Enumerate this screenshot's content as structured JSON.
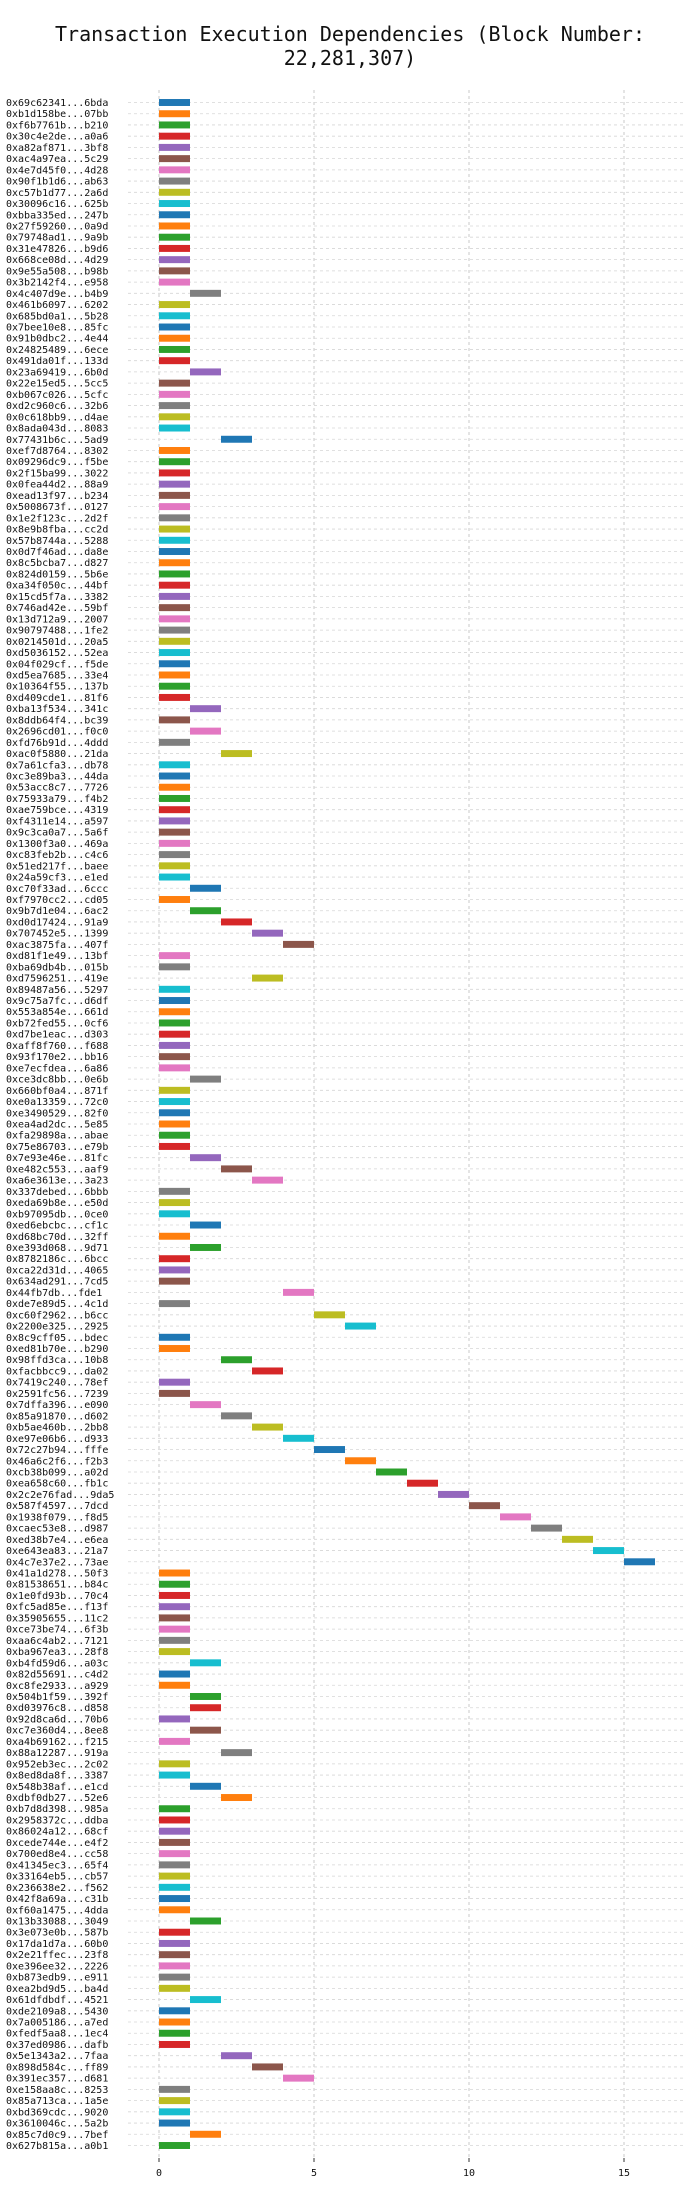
{
  "chart_data": {
    "type": "bar",
    "orientation": "horizontal-gantt",
    "title": "Transaction Execution Dependencies (Block Number: 22,281,307)",
    "xlim": [
      -1,
      17
    ],
    "xticks": [
      0,
      5,
      10,
      15
    ],
    "grid": true,
    "palette": [
      "#1f77b4",
      "#ff7f0e",
      "#2ca02c",
      "#d62728",
      "#9467bd",
      "#8c564b",
      "#e377c2",
      "#7f7f7f",
      "#bcbd22",
      "#17becf"
    ],
    "rows": [
      [
        "0x69c62341...6bda",
        0
      ],
      [
        "0xb1d158be...07bb",
        0
      ],
      [
        "0xf6b7761b...b210",
        0
      ],
      [
        "0x30c4e2de...a0a6",
        0
      ],
      [
        "0xa82af871...3bf8",
        0
      ],
      [
        "0xac4a97ea...5c29",
        0
      ],
      [
        "0x4e7d45f0...4d28",
        0
      ],
      [
        "0x90f1b1d6...ab63",
        0
      ],
      [
        "0xc57b1d77...2a6d",
        0
      ],
      [
        "0x30096c16...625b",
        0
      ],
      [
        "0xbba335ed...247b",
        0
      ],
      [
        "0x27f59260...0a9d",
        0
      ],
      [
        "0x79748ad1...9a9b",
        0
      ],
      [
        "0x31e47826...b9d6",
        0
      ],
      [
        "0x668ce08d...4d29",
        0
      ],
      [
        "0x9e55a508...b98b",
        0
      ],
      [
        "0x3b2142f4...e958",
        0
      ],
      [
        "0x4c407d9e...b4b9",
        1
      ],
      [
        "0x461b6097...6202",
        0
      ],
      [
        "0x685bd0a1...5b28",
        0
      ],
      [
        "0x7bee10e8...85fc",
        0
      ],
      [
        "0x91b0dbc2...4e44",
        0
      ],
      [
        "0x24825489...6ece",
        0
      ],
      [
        "0x491da01f...133d",
        0
      ],
      [
        "0x23a69419...6b0d",
        1
      ],
      [
        "0x22e15ed5...5cc5",
        0
      ],
      [
        "0xb067c026...5cfc",
        0
      ],
      [
        "0xd2c960c6...32b6",
        0
      ],
      [
        "0x0c618bb9...d4ae",
        0
      ],
      [
        "0x8ada043d...8083",
        0
      ],
      [
        "0x77431b6c...5ad9",
        2
      ],
      [
        "0xef7d8764...8302",
        0
      ],
      [
        "0x09296dc9...f5be",
        0
      ],
      [
        "0x2f15ba99...3022",
        0
      ],
      [
        "0x0fea44d2...88a9",
        0
      ],
      [
        "0xead13f97...b234",
        0
      ],
      [
        "0x5008673f...0127",
        0
      ],
      [
        "0x1e2f123c...2d2f",
        0
      ],
      [
        "0x8e9b8fba...cc2d",
        0
      ],
      [
        "0x57b8744a...5288",
        0
      ],
      [
        "0x0d7f46ad...da8e",
        0
      ],
      [
        "0x8c5bcba7...d827",
        0
      ],
      [
        "0x824d0159...5b6e",
        0
      ],
      [
        "0xa34f050c...44bf",
        0
      ],
      [
        "0x15cd5f7a...3382",
        0
      ],
      [
        "0x746ad42e...59bf",
        0
      ],
      [
        "0x13d712a9...2007",
        0
      ],
      [
        "0x90797488...1fe2",
        0
      ],
      [
        "0x0214501d...20a5",
        0
      ],
      [
        "0xd5036152...52ea",
        0
      ],
      [
        "0x04f029cf...f5de",
        0
      ],
      [
        "0xd5ea7685...33e4",
        0
      ],
      [
        "0x10364f55...137b",
        0
      ],
      [
        "0xd409cde1...81f6",
        0
      ],
      [
        "0xba13f534...341c",
        1
      ],
      [
        "0x8ddb64f4...bc39",
        0
      ],
      [
        "0x2696cd01...f0c0",
        1
      ],
      [
        "0xfd76b91d...4ddd",
        0
      ],
      [
        "0xac0f5880...21da",
        2
      ],
      [
        "0x7a61cfa3...db78",
        0
      ],
      [
        "0xc3e89ba3...44da",
        0
      ],
      [
        "0x53acc8c7...7726",
        0
      ],
      [
        "0x75933a79...f4b2",
        0
      ],
      [
        "0xae759bce...4319",
        0
      ],
      [
        "0xf4311e14...a597",
        0
      ],
      [
        "0x9c3ca0a7...5a6f",
        0
      ],
      [
        "0x1300f3a0...469a",
        0
      ],
      [
        "0xc83feb2b...c4c6",
        0
      ],
      [
        "0x51ed217f...baee",
        0
      ],
      [
        "0x24a59cf3...e1ed",
        0
      ],
      [
        "0xc70f33ad...6ccc",
        1
      ],
      [
        "0xf7970cc2...cd05",
        0
      ],
      [
        "0x9b7d1e04...6ac2",
        1
      ],
      [
        "0xd0d17424...91a9",
        2
      ],
      [
        "0x707452e5...1399",
        3
      ],
      [
        "0xac3875fa...407f",
        4
      ],
      [
        "0xd81f1e49...13bf",
        0
      ],
      [
        "0xba69db4b...015b",
        0
      ],
      [
        "0xd7596251...419e",
        3
      ],
      [
        "0x89487a56...5297",
        0
      ],
      [
        "0x9c75a7fc...d6df",
        0
      ],
      [
        "0x553a854e...661d",
        0
      ],
      [
        "0xb72fed55...0cf6",
        0
      ],
      [
        "0xd7be1eac...d303",
        0
      ],
      [
        "0xaff8f760...f688",
        0
      ],
      [
        "0x93f170e2...bb16",
        0
      ],
      [
        "0xe7ecfdea...6a86",
        0
      ],
      [
        "0xce3dc8bb...0e6b",
        1
      ],
      [
        "0x660bf0a4...871f",
        0
      ],
      [
        "0xe0a13359...72c0",
        0
      ],
      [
        "0xe3490529...82f0",
        0
      ],
      [
        "0xea4ad2dc...5e85",
        0
      ],
      [
        "0xfa29898a...abae",
        0
      ],
      [
        "0x75e86703...e79b",
        0
      ],
      [
        "0x7e93e46e...81fc",
        1
      ],
      [
        "0xe482c553...aaf9",
        2
      ],
      [
        "0xa6e3613e...3a23",
        3
      ],
      [
        "0x337debed...6bbb",
        0
      ],
      [
        "0xeda69b8e...e50d",
        0
      ],
      [
        "0xb97095db...0ce0",
        0
      ],
      [
        "0xed6ebcbc...cf1c",
        1
      ],
      [
        "0xd68bc70d...32ff",
        0
      ],
      [
        "0xe393d068...9d71",
        1
      ],
      [
        "0x8782186c...6bcc",
        0
      ],
      [
        "0xca22d31d...4065",
        0
      ],
      [
        "0x634ad291...7cd5",
        0
      ],
      [
        "0x44fb7db...fde1",
        4
      ],
      [
        "0xde7e89d5...4c1d",
        0
      ],
      [
        "0xc60f2962...b6cc",
        5
      ],
      [
        "0x2200e325...2925",
        6
      ],
      [
        "0x8c9cff05...bdec",
        0
      ],
      [
        "0xed81b70e...b290",
        0
      ],
      [
        "0x98ffd3ca...10b8",
        2
      ],
      [
        "0xfacbbcc9...da02",
        3
      ],
      [
        "0x7419c240...78ef",
        0
      ],
      [
        "0x2591fc56...7239",
        0
      ],
      [
        "0x7dffa396...e090",
        1
      ],
      [
        "0x85a91870...d602",
        2
      ],
      [
        "0xb5ae460b...2bb8",
        3
      ],
      [
        "0xe97e06b6...d933",
        4
      ],
      [
        "0x72c27b94...fffe",
        5
      ],
      [
        "0x46a6c2f6...f2b3",
        6
      ],
      [
        "0xcb38b099...a02d",
        7
      ],
      [
        "0xea658c60...fb1c",
        8
      ],
      [
        "0x2c2e76fad...9da5",
        9
      ],
      [
        "0x587f4597...7dcd",
        10
      ],
      [
        "0x1938f079...f8d5",
        11
      ],
      [
        "0xcaec53e8...d987",
        12
      ],
      [
        "0xed38b7e4...e6ea",
        13
      ],
      [
        "0xe643ea83...21a7",
        14
      ],
      [
        "0x4c7e37e2...73ae",
        15
      ],
      [
        "0x41a1d278...50f3",
        0
      ],
      [
        "0x81538651...b84c",
        0
      ],
      [
        "0x1e0fd93b...70c4",
        0
      ],
      [
        "0xfc5ad85e...f13f",
        0
      ],
      [
        "0x35905655...11c2",
        0
      ],
      [
        "0xce73be74...6f3b",
        0
      ],
      [
        "0xaa6c4ab2...7121",
        0
      ],
      [
        "0xba967ea3...28f8",
        0
      ],
      [
        "0xb4fd59d6...a03c",
        1
      ],
      [
        "0x82d55691...c4d2",
        0
      ],
      [
        "0xc8fe2933...a929",
        0
      ],
      [
        "0x504b1f59...392f",
        1
      ],
      [
        "0xd03976c8...d858",
        1
      ],
      [
        "0x92d8ca6d...70b6",
        0
      ],
      [
        "0xc7e360d4...8ee8",
        1
      ],
      [
        "0xa4b69162...f215",
        0
      ],
      [
        "0x88a12287...919a",
        2
      ],
      [
        "0x952eb3ec...2c02",
        0
      ],
      [
        "0x8ed8da8f...3387",
        0
      ],
      [
        "0x548b38af...e1cd",
        1
      ],
      [
        "0xdbf0db27...52e6",
        2
      ],
      [
        "0xb7d8d398...985a",
        0
      ],
      [
        "0x2958372c...ddba",
        0
      ],
      [
        "0x86024a12...68cf",
        0
      ],
      [
        "0xcede744e...e4f2",
        0
      ],
      [
        "0x700ed8e4...cc58",
        0
      ],
      [
        "0x41345ec3...65f4",
        0
      ],
      [
        "0x33164eb5...cb57",
        0
      ],
      [
        "0x236638e2...f562",
        0
      ],
      [
        "0x42f8a69a...c31b",
        0
      ],
      [
        "0xf60a1475...4dda",
        0
      ],
      [
        "0x13b33088...3049",
        1
      ],
      [
        "0x3e073e0b...587b",
        0
      ],
      [
        "0x17da1d7a...60b0",
        0
      ],
      [
        "0x2e21ffec...23f8",
        0
      ],
      [
        "0xe396ee32...2226",
        0
      ],
      [
        "0xb873edb9...e911",
        0
      ],
      [
        "0xea2bd9d5...ba4d",
        0
      ],
      [
        "0x61dfdbdf...4521",
        1
      ],
      [
        "0xde2109a8...5430",
        0
      ],
      [
        "0x7a005186...a7ed",
        0
      ],
      [
        "0xfedf5aa8...1ec4",
        0
      ],
      [
        "0x37ed0986...dafb",
        0
      ],
      [
        "0x5e1343a2...7faa",
        2
      ],
      [
        "0x898d584c...ff89",
        3
      ],
      [
        "0x391ec357...d681",
        4
      ],
      [
        "0xe158aa8c...8253",
        0
      ],
      [
        "0x85a713ca...1a5e",
        0
      ],
      [
        "0xbd369cdc...9020",
        0
      ],
      [
        "0x3610046c...5a2b",
        0
      ],
      [
        "0x85c7d0c9...7bef",
        1
      ],
      [
        "0x627b815a...a0b1",
        0
      ]
    ]
  }
}
